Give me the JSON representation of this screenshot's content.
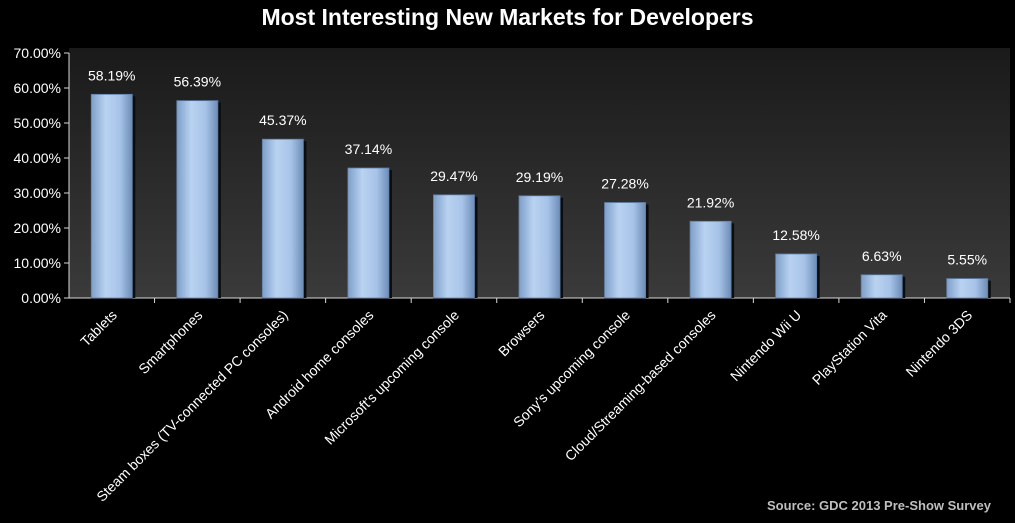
{
  "chart_data": {
    "type": "bar",
    "title": "Most Interesting New Markets for Developers",
    "categories": [
      "Tablets",
      "Smartphones",
      "Steam boxes (TV-connected PC consoles)",
      "Android home consoles",
      "Microsoft's upcoming console",
      "Browsers",
      "Sony's upcoming console",
      "Cloud/Streaming-based consoles",
      "Nintendo Wii U",
      "PlayStation Vita",
      "Nintendo 3DS"
    ],
    "values": [
      58.19,
      56.39,
      45.37,
      37.14,
      29.47,
      29.19,
      27.28,
      21.92,
      12.58,
      6.63,
      5.55
    ],
    "data_labels": [
      "58.19%",
      "56.39%",
      "45.37%",
      "37.14%",
      "29.47%",
      "29.19%",
      "27.28%",
      "21.92%",
      "12.58%",
      "6.63%",
      "5.55%"
    ],
    "ylim": [
      0,
      70
    ],
    "yticks": [
      0,
      10,
      20,
      30,
      40,
      50,
      60,
      70
    ],
    "ytick_labels": [
      "0.00%",
      "10.00%",
      "20.00%",
      "30.00%",
      "40.00%",
      "50.00%",
      "60.00%",
      "70.00%"
    ],
    "xlabel": "",
    "ylabel": "",
    "grid": false,
    "legend": "none",
    "colors": {
      "bar": "#a9c7ec",
      "background": "#000000"
    }
  },
  "source_note": "Source:  GDC 2013  Pre-Show Survey"
}
